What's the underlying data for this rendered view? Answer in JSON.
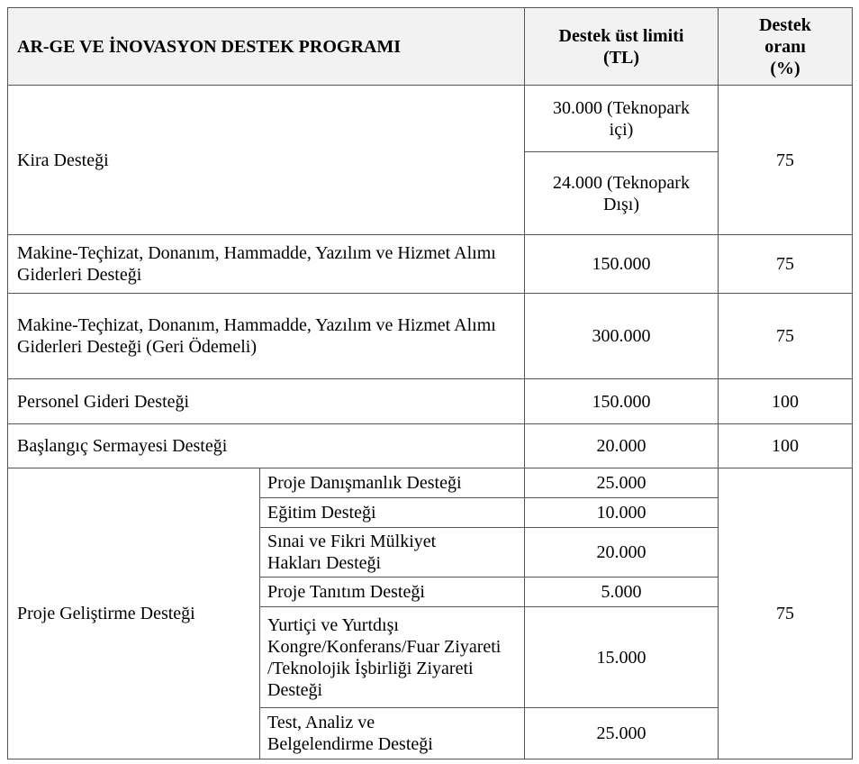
{
  "header": {
    "program": "AR-GE VE İNOVASYON DESTEK PROGRAMI",
    "limit": "Destek üst limiti (TL)",
    "rate": "Destek oranı (%)"
  },
  "rows": {
    "kira": {
      "label": "Kira Desteği",
      "limit_a": "30.000 (Teknopark içi)",
      "limit_b": "24.000 (Teknopark Dışı)",
      "rate": "75"
    },
    "makine1": {
      "label": "Makine-Teçhizat, Donanım, Hammadde, Yazılım ve Hizmet Alımı Giderleri Desteği",
      "limit": "150.000",
      "rate": "75"
    },
    "makine2": {
      "label": "Makine-Teçhizat, Donanım, Hammadde, Yazılım ve Hizmet Alımı Giderleri Desteği (Geri Ödemeli)",
      "limit": "300.000",
      "rate": "75"
    },
    "personel": {
      "label": "Personel Gideri Desteği",
      "limit": "150.000",
      "rate": "100"
    },
    "baslangic": {
      "label": "Başlangıç Sermayesi Desteği",
      "limit": "20.000",
      "rate": "100"
    },
    "proje": {
      "label": "Proje Geliştirme Desteği",
      "rate": "75",
      "items": [
        {
          "label": "Proje Danışmanlık Desteği",
          "limit": "25.000"
        },
        {
          "label": "Eğitim Desteği",
          "limit": "10.000"
        },
        {
          "label": "Sınai ve Fikri Mülkiyet Hakları Desteği",
          "limit": "20.000"
        },
        {
          "label": "Proje Tanıtım Desteği",
          "limit": "5.000"
        },
        {
          "label": "Yurtiçi ve Yurtdışı Kongre/Konferans/Fuar Ziyareti /Teknolojik İşbirliği Ziyareti Desteği",
          "limit": "15.000"
        },
        {
          "label": "Test, Analiz ve Belgelendirme Desteği",
          "limit": "25.000"
        }
      ]
    }
  }
}
